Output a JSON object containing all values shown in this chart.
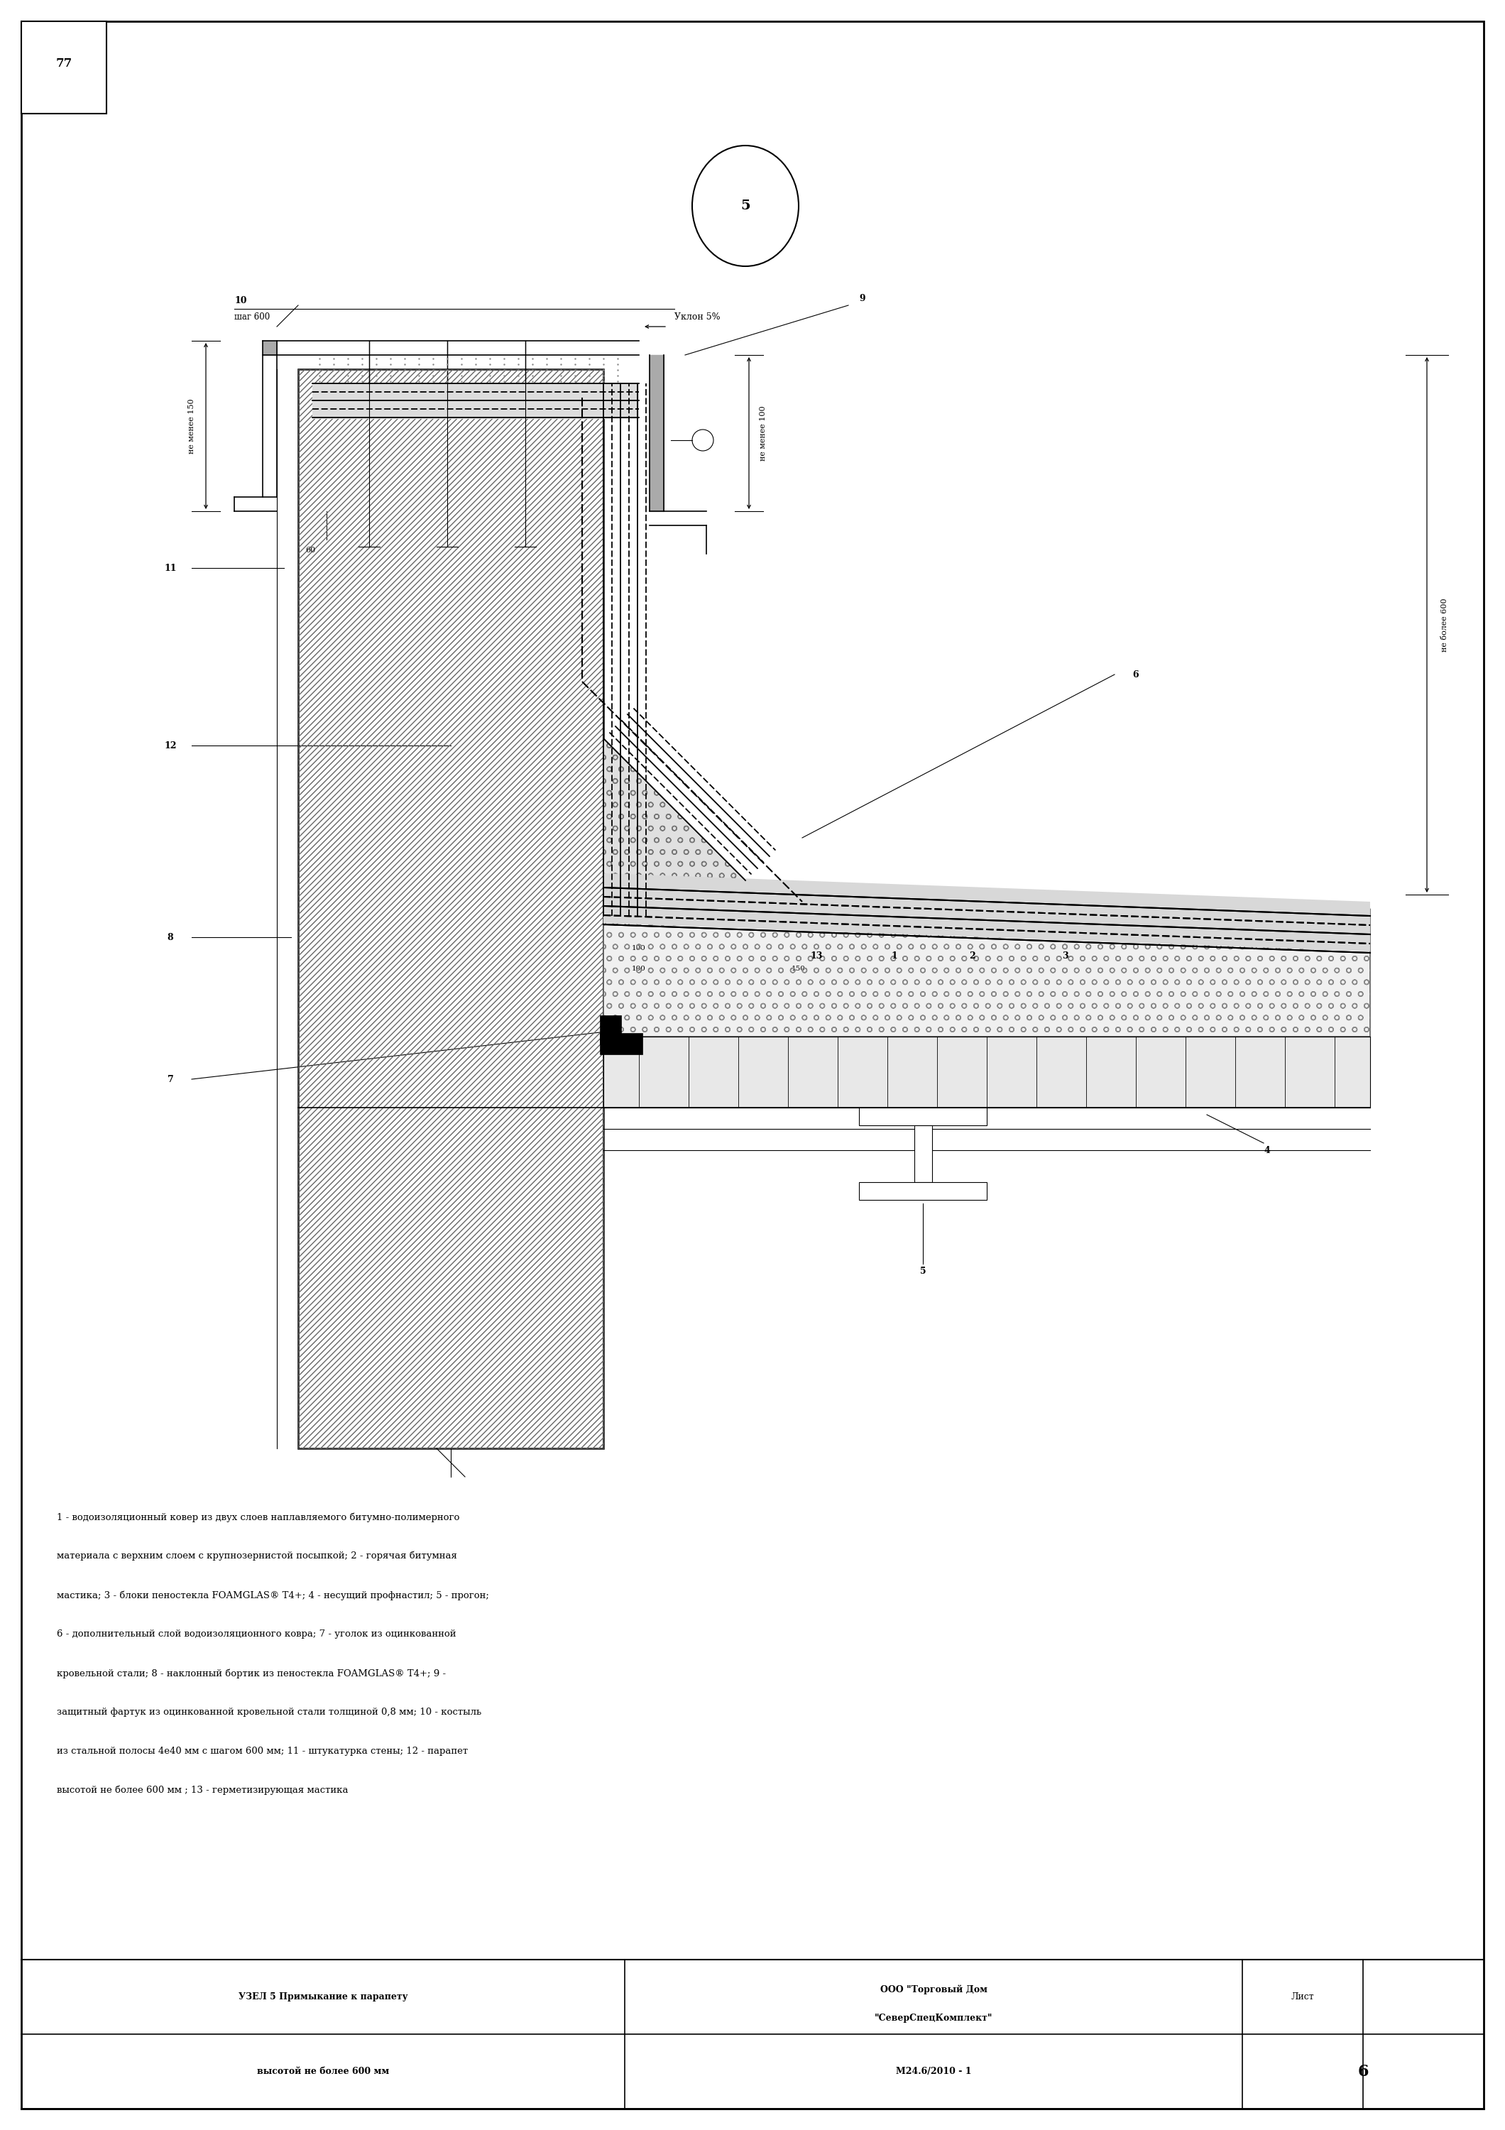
{
  "page_width": 21.2,
  "page_height": 30.0,
  "bg_color": "#ffffff",
  "border_color": "#000000",
  "title_num": "77",
  "node_num": "5",
  "desc_line1": "1 - водоизоляционный ковер из двух слоев наплавляемого битумно-полимерного",
  "desc_line2": "материала с верхним слоем с крупнозернистой посыпкой; 2 - горячая битумная",
  "desc_line3": "мастика; 3 - блоки пеностекла FOAMGLAS® T4+; 4 - несущий профнастил; 5 - прогон;",
  "desc_line4": "6 - дополнительный слой водоизоляционного ковра; 7 - уголок из оцинкованной",
  "desc_line5": "кровельной стали; 8 - наклонный бортик из пеностекла FOAMGLAS® T4+; 9 -",
  "desc_line6": "защитный фартук из оцинкованной кровельной стали толщиной 0,8 мм; 10 - костыль",
  "desc_line7": "из стальной полосы 4е40 мм с шагом 600 мм; 11 - штукатурка стены; 12 - парапет",
  "desc_line8": "высотой не более 600 мм ; 13 - герметизирующая мастика",
  "bottom_left1": "УЗЕЛ 5 Примыкание к парапету",
  "bottom_left2": "высотой не более 600 мм",
  "bottom_center1": "ООО \"Торговый Дом",
  "bottom_center2": "\"СеверСпецКомплект\"",
  "bottom_center3": "M24.6/2010 - 1",
  "bottom_right_label": "Лист",
  "bottom_right_num": "6"
}
